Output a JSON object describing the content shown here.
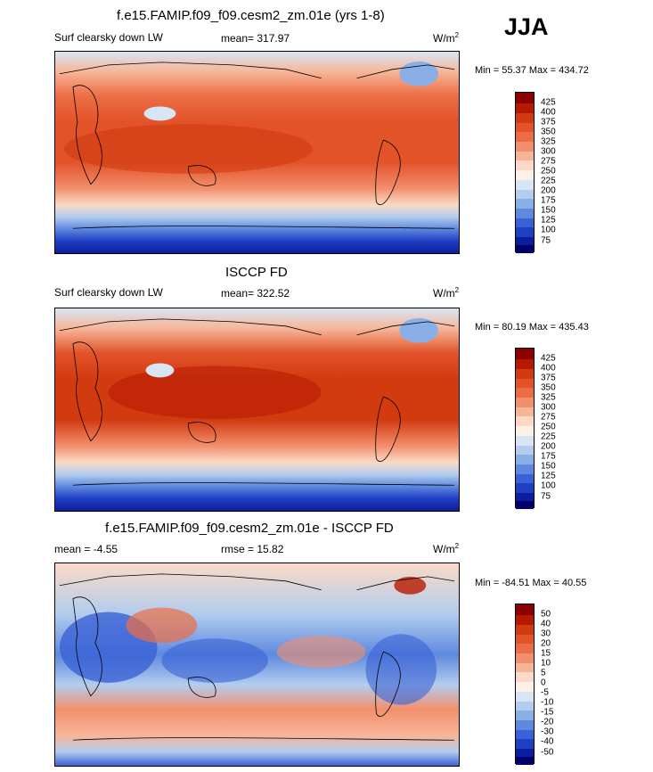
{
  "season": "JJA",
  "panels": [
    {
      "title": "f.e15.FAMIP.f09_f09.cesm2_zm.01e (yrs 1-8)",
      "left_label": "Surf clearsky down LW",
      "center_label": "mean= 317.97",
      "units_base": "W/m",
      "units_sup": "2",
      "minmax": "Min =  55.37 Max = 434.72",
      "levels": [
        "425",
        "400",
        "375",
        "350",
        "325",
        "300",
        "275",
        "250",
        "225",
        "200",
        "175",
        "150",
        "125",
        "100",
        "75"
      ]
    },
    {
      "title": "ISCCP FD",
      "left_label": "Surf clearsky down LW",
      "center_label": "mean= 322.52",
      "units_base": "W/m",
      "units_sup": "2",
      "minmax": "Min =  80.19 Max = 435.43",
      "levels": [
        "425",
        "400",
        "375",
        "350",
        "325",
        "300",
        "275",
        "250",
        "225",
        "200",
        "175",
        "150",
        "125",
        "100",
        "75"
      ]
    },
    {
      "title": "f.e15.FAMIP.f09_f09.cesm2_zm.01e - ISCCP FD",
      "left_label": "mean =  -4.55",
      "center_label": "rmse =  15.82",
      "units_base": "W/m",
      "units_sup": "2",
      "minmax": "Min = -84.51 Max =  40.55",
      "levels": [
        "50",
        "40",
        "30",
        "20",
        "15",
        "10",
        "5",
        "0",
        "-5",
        "-10",
        "-15",
        "-20",
        "-30",
        "-40",
        "-50"
      ]
    }
  ],
  "colors": {
    "palette": [
      "#8b0000",
      "#b51a00",
      "#d23a10",
      "#e2532a",
      "#ec6d45",
      "#f2906d",
      "#f7b598",
      "#fbd9c6",
      "#fdf0e6",
      "#d7e5f5",
      "#b2cdee",
      "#8aaee6",
      "#5f89df",
      "#3a62d6",
      "#1f3fc4",
      "#0b1f9e",
      "#00006b"
    ]
  }
}
